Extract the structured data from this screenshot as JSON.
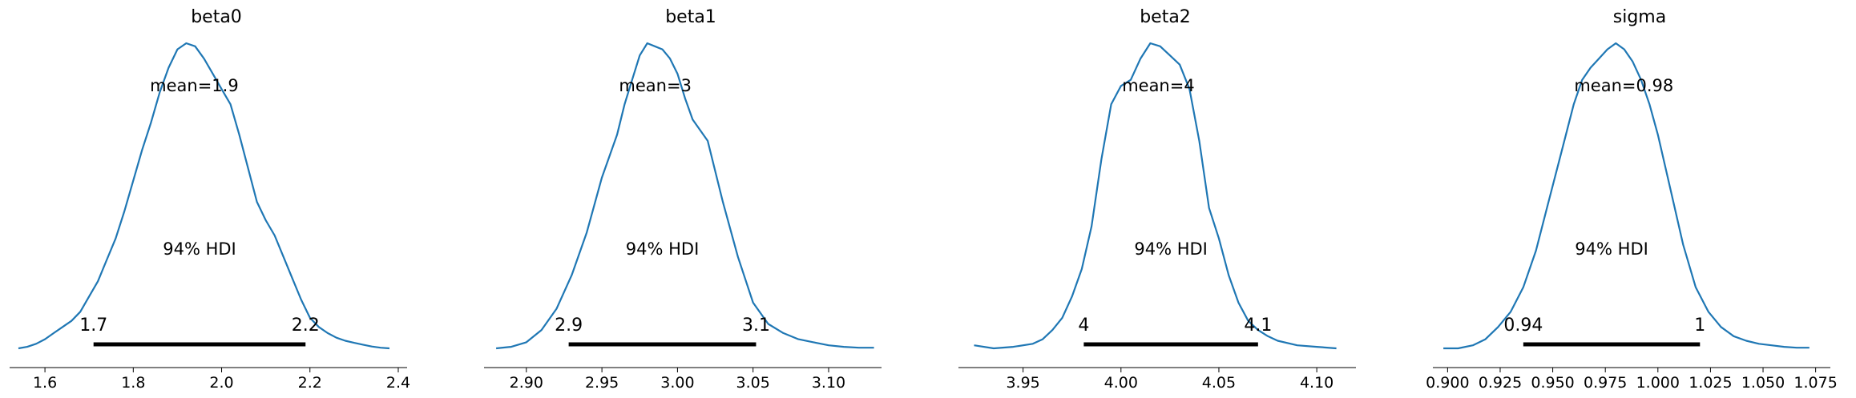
{
  "chart_data": [
    {
      "type": "area",
      "title": "beta0",
      "mean_label": "mean=1.9",
      "hdi_label": "94% HDI",
      "hdi": {
        "lower": 1.71,
        "upper": 2.19,
        "lower_label": "1.7",
        "upper_label": "2.2"
      },
      "xlim": [
        1.52,
        2.42
      ],
      "ticks": [
        {
          "value": 1.6,
          "label": "1.6"
        },
        {
          "value": 1.8,
          "label": "1.8"
        },
        {
          "value": 2.0,
          "label": "2.0"
        },
        {
          "value": 2.2,
          "label": "2.2"
        },
        {
          "value": 2.4,
          "label": "2.4"
        }
      ],
      "density": {
        "x": [
          1.54,
          1.56,
          1.58,
          1.6,
          1.62,
          1.64,
          1.66,
          1.68,
          1.7,
          1.72,
          1.74,
          1.76,
          1.78,
          1.8,
          1.82,
          1.84,
          1.86,
          1.88,
          1.9,
          1.92,
          1.94,
          1.96,
          1.98,
          2.0,
          2.02,
          2.04,
          2.06,
          2.08,
          2.1,
          2.12,
          2.14,
          2.16,
          2.18,
          2.2,
          2.22,
          2.24,
          2.26,
          2.28,
          2.3,
          2.32,
          2.34,
          2.36,
          2.38
        ],
        "y": [
          0.0,
          0.005,
          0.015,
          0.03,
          0.05,
          0.07,
          0.09,
          0.12,
          0.17,
          0.22,
          0.29,
          0.36,
          0.45,
          0.55,
          0.65,
          0.74,
          0.84,
          0.92,
          0.98,
          1.0,
          0.99,
          0.95,
          0.9,
          0.85,
          0.8,
          0.7,
          0.59,
          0.48,
          0.42,
          0.37,
          0.3,
          0.23,
          0.16,
          0.1,
          0.07,
          0.05,
          0.035,
          0.025,
          0.018,
          0.012,
          0.006,
          0.002,
          0.0
        ]
      }
    },
    {
      "type": "area",
      "title": "beta1",
      "mean_label": "mean=3",
      "hdi_label": "94% HDI",
      "hdi": {
        "lower": 2.928,
        "upper": 3.052,
        "lower_label": "2.9",
        "upper_label": "3.1"
      },
      "xlim": [
        2.872,
        3.135
      ],
      "ticks": [
        {
          "value": 2.9,
          "label": "2.90"
        },
        {
          "value": 2.95,
          "label": "2.95"
        },
        {
          "value": 3.0,
          "label": "3.00"
        },
        {
          "value": 3.05,
          "label": "3.05"
        },
        {
          "value": 3.1,
          "label": "3.10"
        }
      ],
      "density": {
        "x": [
          2.88,
          2.89,
          2.9,
          2.91,
          2.92,
          2.93,
          2.94,
          2.95,
          2.96,
          2.965,
          2.97,
          2.975,
          2.98,
          2.985,
          2.99,
          2.995,
          3.0,
          3.005,
          3.01,
          3.02,
          3.03,
          3.04,
          3.05,
          3.06,
          3.07,
          3.08,
          3.09,
          3.1,
          3.11,
          3.12,
          3.13
        ],
        "y": [
          0.0,
          0.005,
          0.02,
          0.06,
          0.13,
          0.24,
          0.38,
          0.56,
          0.7,
          0.8,
          0.88,
          0.96,
          1.0,
          0.99,
          0.98,
          0.95,
          0.9,
          0.82,
          0.75,
          0.68,
          0.48,
          0.3,
          0.15,
          0.08,
          0.05,
          0.03,
          0.02,
          0.01,
          0.005,
          0.002,
          0.002
        ]
      }
    },
    {
      "type": "area",
      "title": "beta2",
      "mean_label": "mean=4",
      "hdi_label": "94% HDI",
      "hdi": {
        "lower": 3.981,
        "upper": 4.07,
        "lower_label": "4",
        "upper_label": "4.1"
      },
      "xlim": [
        3.917,
        4.12
      ],
      "ticks": [
        {
          "value": 3.95,
          "label": "3.95"
        },
        {
          "value": 4.0,
          "label": "4.00"
        },
        {
          "value": 4.05,
          "label": "4.05"
        },
        {
          "value": 4.1,
          "label": "4.10"
        }
      ],
      "density": {
        "x": [
          3.925,
          3.935,
          3.945,
          3.955,
          3.96,
          3.965,
          3.97,
          3.975,
          3.98,
          3.985,
          3.99,
          3.995,
          4.0,
          4.005,
          4.01,
          4.015,
          4.02,
          4.025,
          4.03,
          4.035,
          4.04,
          4.045,
          4.05,
          4.055,
          4.06,
          4.065,
          4.07,
          4.075,
          4.08,
          4.09,
          4.1,
          4.11
        ],
        "y": [
          0.01,
          0.0,
          0.005,
          0.015,
          0.03,
          0.06,
          0.1,
          0.17,
          0.26,
          0.4,
          0.62,
          0.8,
          0.86,
          0.88,
          0.95,
          1.0,
          0.99,
          0.96,
          0.93,
          0.85,
          0.68,
          0.46,
          0.36,
          0.24,
          0.15,
          0.09,
          0.06,
          0.04,
          0.025,
          0.01,
          0.005,
          0.0
        ]
      }
    },
    {
      "type": "area",
      "title": "sigma",
      "mean_label": "mean=0.98",
      "hdi_label": "94% HDI",
      "hdi": {
        "lower": 0.936,
        "upper": 1.02,
        "lower_label": "0.94",
        "upper_label": "1"
      },
      "xlim": [
        0.893,
        1.082
      ],
      "ticks": [
        {
          "value": 0.9,
          "label": "0.900"
        },
        {
          "value": 0.925,
          "label": "0.925"
        },
        {
          "value": 0.95,
          "label": "0.950"
        },
        {
          "value": 0.975,
          "label": "0.975"
        },
        {
          "value": 1.0,
          "label": "1.000"
        },
        {
          "value": 1.025,
          "label": "1.025"
        },
        {
          "value": 1.05,
          "label": "1.050"
        },
        {
          "value": 1.075,
          "label": "1.075"
        }
      ],
      "density": {
        "x": [
          0.898,
          0.905,
          0.912,
          0.918,
          0.924,
          0.93,
          0.936,
          0.942,
          0.948,
          0.954,
          0.96,
          0.964,
          0.968,
          0.972,
          0.976,
          0.98,
          0.984,
          0.988,
          0.992,
          0.996,
          1.0,
          1.006,
          1.012,
          1.018,
          1.024,
          1.03,
          1.036,
          1.042,
          1.048,
          1.054,
          1.06,
          1.066,
          1.072
        ],
        "y": [
          0.0,
          0.0,
          0.01,
          0.03,
          0.07,
          0.12,
          0.2,
          0.32,
          0.48,
          0.64,
          0.8,
          0.88,
          0.92,
          0.95,
          0.98,
          1.0,
          0.98,
          0.94,
          0.88,
          0.8,
          0.7,
          0.52,
          0.34,
          0.2,
          0.12,
          0.07,
          0.04,
          0.025,
          0.015,
          0.01,
          0.005,
          0.002,
          0.002
        ]
      }
    }
  ]
}
